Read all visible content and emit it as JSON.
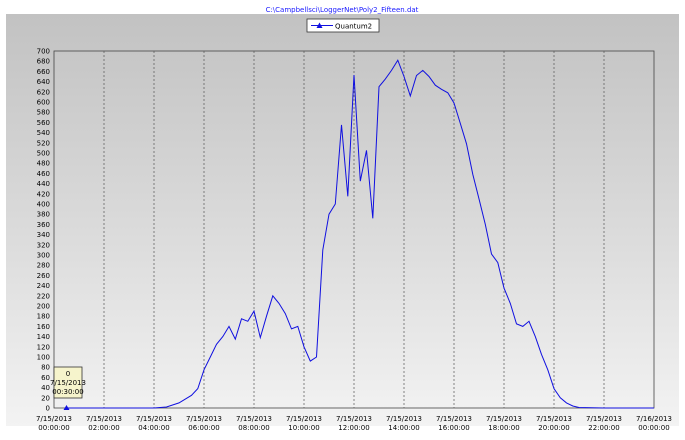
{
  "colors": {
    "series_line": "#1010e0",
    "title_text": "#1a1aff",
    "grid_line": "#555555",
    "tooltip_bg": "#f6f4cc"
  },
  "chart_data": {
    "type": "line",
    "title": "C:\\Campbellsci\\LoggerNet\\Poly2_Fifteen.dat",
    "legend_position": "top-center",
    "grid": true,
    "ylim": [
      0,
      700
    ],
    "y_ticks": [
      0,
      20,
      40,
      60,
      80,
      100,
      120,
      140,
      160,
      180,
      200,
      220,
      240,
      260,
      280,
      300,
      320,
      340,
      360,
      380,
      400,
      420,
      440,
      460,
      480,
      500,
      520,
      540,
      560,
      580,
      600,
      620,
      640,
      660,
      680,
      700
    ],
    "x_range_hours": [
      0,
      24
    ],
    "x_ticks": [
      {
        "date": "7/15/2013",
        "time": "00:00:00",
        "hour": 0
      },
      {
        "date": "7/15/2013",
        "time": "02:00:00",
        "hour": 2
      },
      {
        "date": "7/15/2013",
        "time": "04:00:00",
        "hour": 4
      },
      {
        "date": "7/15/2013",
        "time": "06:00:00",
        "hour": 6
      },
      {
        "date": "7/15/2013",
        "time": "08:00:00",
        "hour": 8
      },
      {
        "date": "7/15/2013",
        "time": "10:00:00",
        "hour": 10
      },
      {
        "date": "7/15/2013",
        "time": "12:00:00",
        "hour": 12
      },
      {
        "date": "7/15/2013",
        "time": "14:00:00",
        "hour": 14
      },
      {
        "date": "7/15/2013",
        "time": "16:00:00",
        "hour": 16
      },
      {
        "date": "7/15/2013",
        "time": "18:00:00",
        "hour": 18
      },
      {
        "date": "7/15/2013",
        "time": "20:00:00",
        "hour": 20
      },
      {
        "date": "7/15/2013",
        "time": "22:00:00",
        "hour": 22
      },
      {
        "date": "7/16/2013",
        "time": "00:00:00",
        "hour": 24
      }
    ],
    "series": [
      {
        "name": "Quantum2",
        "x": [
          0.5,
          1,
          2,
          3,
          4,
          4.5,
          5,
          5.5,
          5.75,
          6,
          6.25,
          6.5,
          6.75,
          7,
          7.25,
          7.5,
          7.75,
          8,
          8.25,
          8.5,
          8.75,
          9,
          9.25,
          9.5,
          9.75,
          10,
          10.25,
          10.5,
          10.75,
          11,
          11.25,
          11.5,
          11.75,
          12,
          12.25,
          12.5,
          12.75,
          13,
          13.25,
          13.5,
          13.75,
          14,
          14.25,
          14.5,
          14.75,
          15,
          15.25,
          15.5,
          15.75,
          16,
          16.25,
          16.5,
          16.75,
          17,
          17.25,
          17.5,
          17.75,
          18,
          18.25,
          18.5,
          18.75,
          19,
          19.25,
          19.5,
          19.75,
          20,
          20.25,
          20.5,
          20.75,
          21,
          22,
          23,
          24
        ],
        "values": [
          0,
          0,
          0,
          0,
          0,
          2,
          10,
          25,
          38,
          75,
          100,
          125,
          140,
          160,
          135,
          175,
          170,
          190,
          138,
          180,
          220,
          205,
          185,
          155,
          160,
          120,
          92,
          100,
          310,
          380,
          400,
          555,
          415,
          653,
          445,
          505,
          372,
          630,
          645,
          662,
          682,
          650,
          612,
          652,
          662,
          650,
          633,
          625,
          618,
          598,
          558,
          518,
          458,
          410,
          360,
          302,
          285,
          235,
          205,
          165,
          160,
          170,
          140,
          105,
          75,
          38,
          20,
          10,
          4,
          1,
          0,
          0,
          0
        ]
      }
    ],
    "tooltip": {
      "value": "0",
      "date": "7/15/2013",
      "time": "00:30:00",
      "hour": 0.5
    }
  }
}
